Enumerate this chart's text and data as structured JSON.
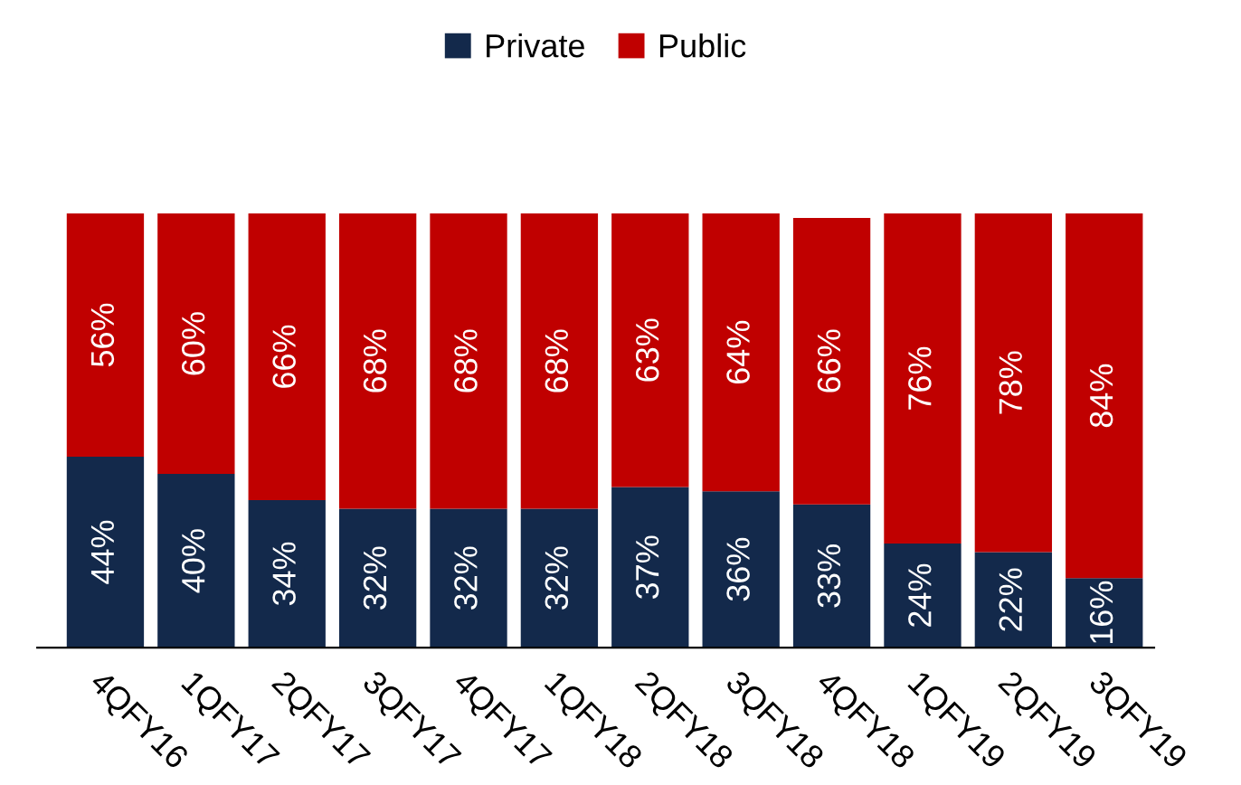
{
  "chart_data": {
    "type": "bar",
    "stacked": true,
    "legend": "top",
    "categories": [
      "4QFY16",
      "1QFY17",
      "2QFY17",
      "3QFY17",
      "4QFY17",
      "1QFY18",
      "2QFY18",
      "3QFY18",
      "4QFY18",
      "1QFY19",
      "2QFY19",
      "3QFY19"
    ],
    "series": [
      {
        "name": "Private",
        "color": "#13294b",
        "values": [
          44,
          40,
          34,
          32,
          32,
          32,
          37,
          36,
          33,
          24,
          22,
          16
        ],
        "value_labels": [
          "44%",
          "40%",
          "34%",
          "32%",
          "32%",
          "32%",
          "37%",
          "36%",
          "33%",
          "24%",
          "22%",
          "16%"
        ]
      },
      {
        "name": "Public",
        "color": "#c00000",
        "values": [
          56,
          60,
          66,
          68,
          68,
          68,
          63,
          64,
          66,
          76,
          78,
          84
        ],
        "value_labels": [
          "56%",
          "60%",
          "66%",
          "68%",
          "68%",
          "68%",
          "63%",
          "64%",
          "66%",
          "76%",
          "78%",
          "84%"
        ]
      }
    ]
  }
}
